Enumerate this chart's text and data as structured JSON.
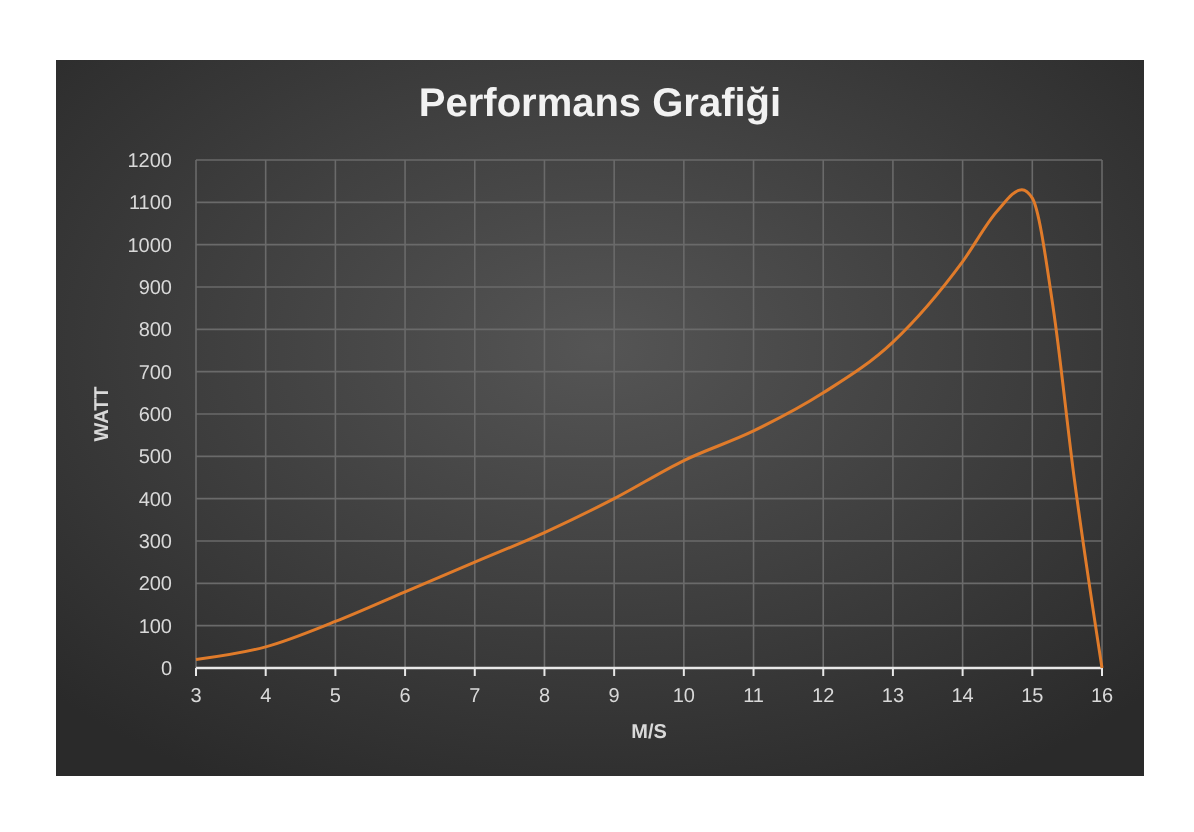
{
  "chart_data": {
    "type": "line",
    "title": "Performans Grafiği",
    "xlabel": "M/S",
    "ylabel": "WATT",
    "x": [
      3,
      4,
      5,
      6,
      7,
      8,
      9,
      10,
      11,
      12,
      13,
      14,
      14.5,
      14.85,
      15,
      15.3,
      15.6,
      16
    ],
    "series": [
      {
        "color": "#e07b2a",
        "values": [
          20,
          50,
          110,
          180,
          250,
          320,
          400,
          490,
          560,
          650,
          770,
          960,
          1080,
          1130,
          1110,
          850,
          450,
          0
        ]
      }
    ],
    "xlim": [
      3,
      16
    ],
    "xticks": [
      3,
      4,
      5,
      6,
      7,
      8,
      9,
      10,
      11,
      12,
      13,
      14,
      15,
      16
    ],
    "ylim": [
      0,
      1200
    ],
    "yticks": [
      0,
      100,
      200,
      300,
      400,
      500,
      600,
      700,
      800,
      900,
      1000,
      1100,
      1200
    ],
    "grid": true,
    "marker": "none",
    "line_style": "solid"
  }
}
